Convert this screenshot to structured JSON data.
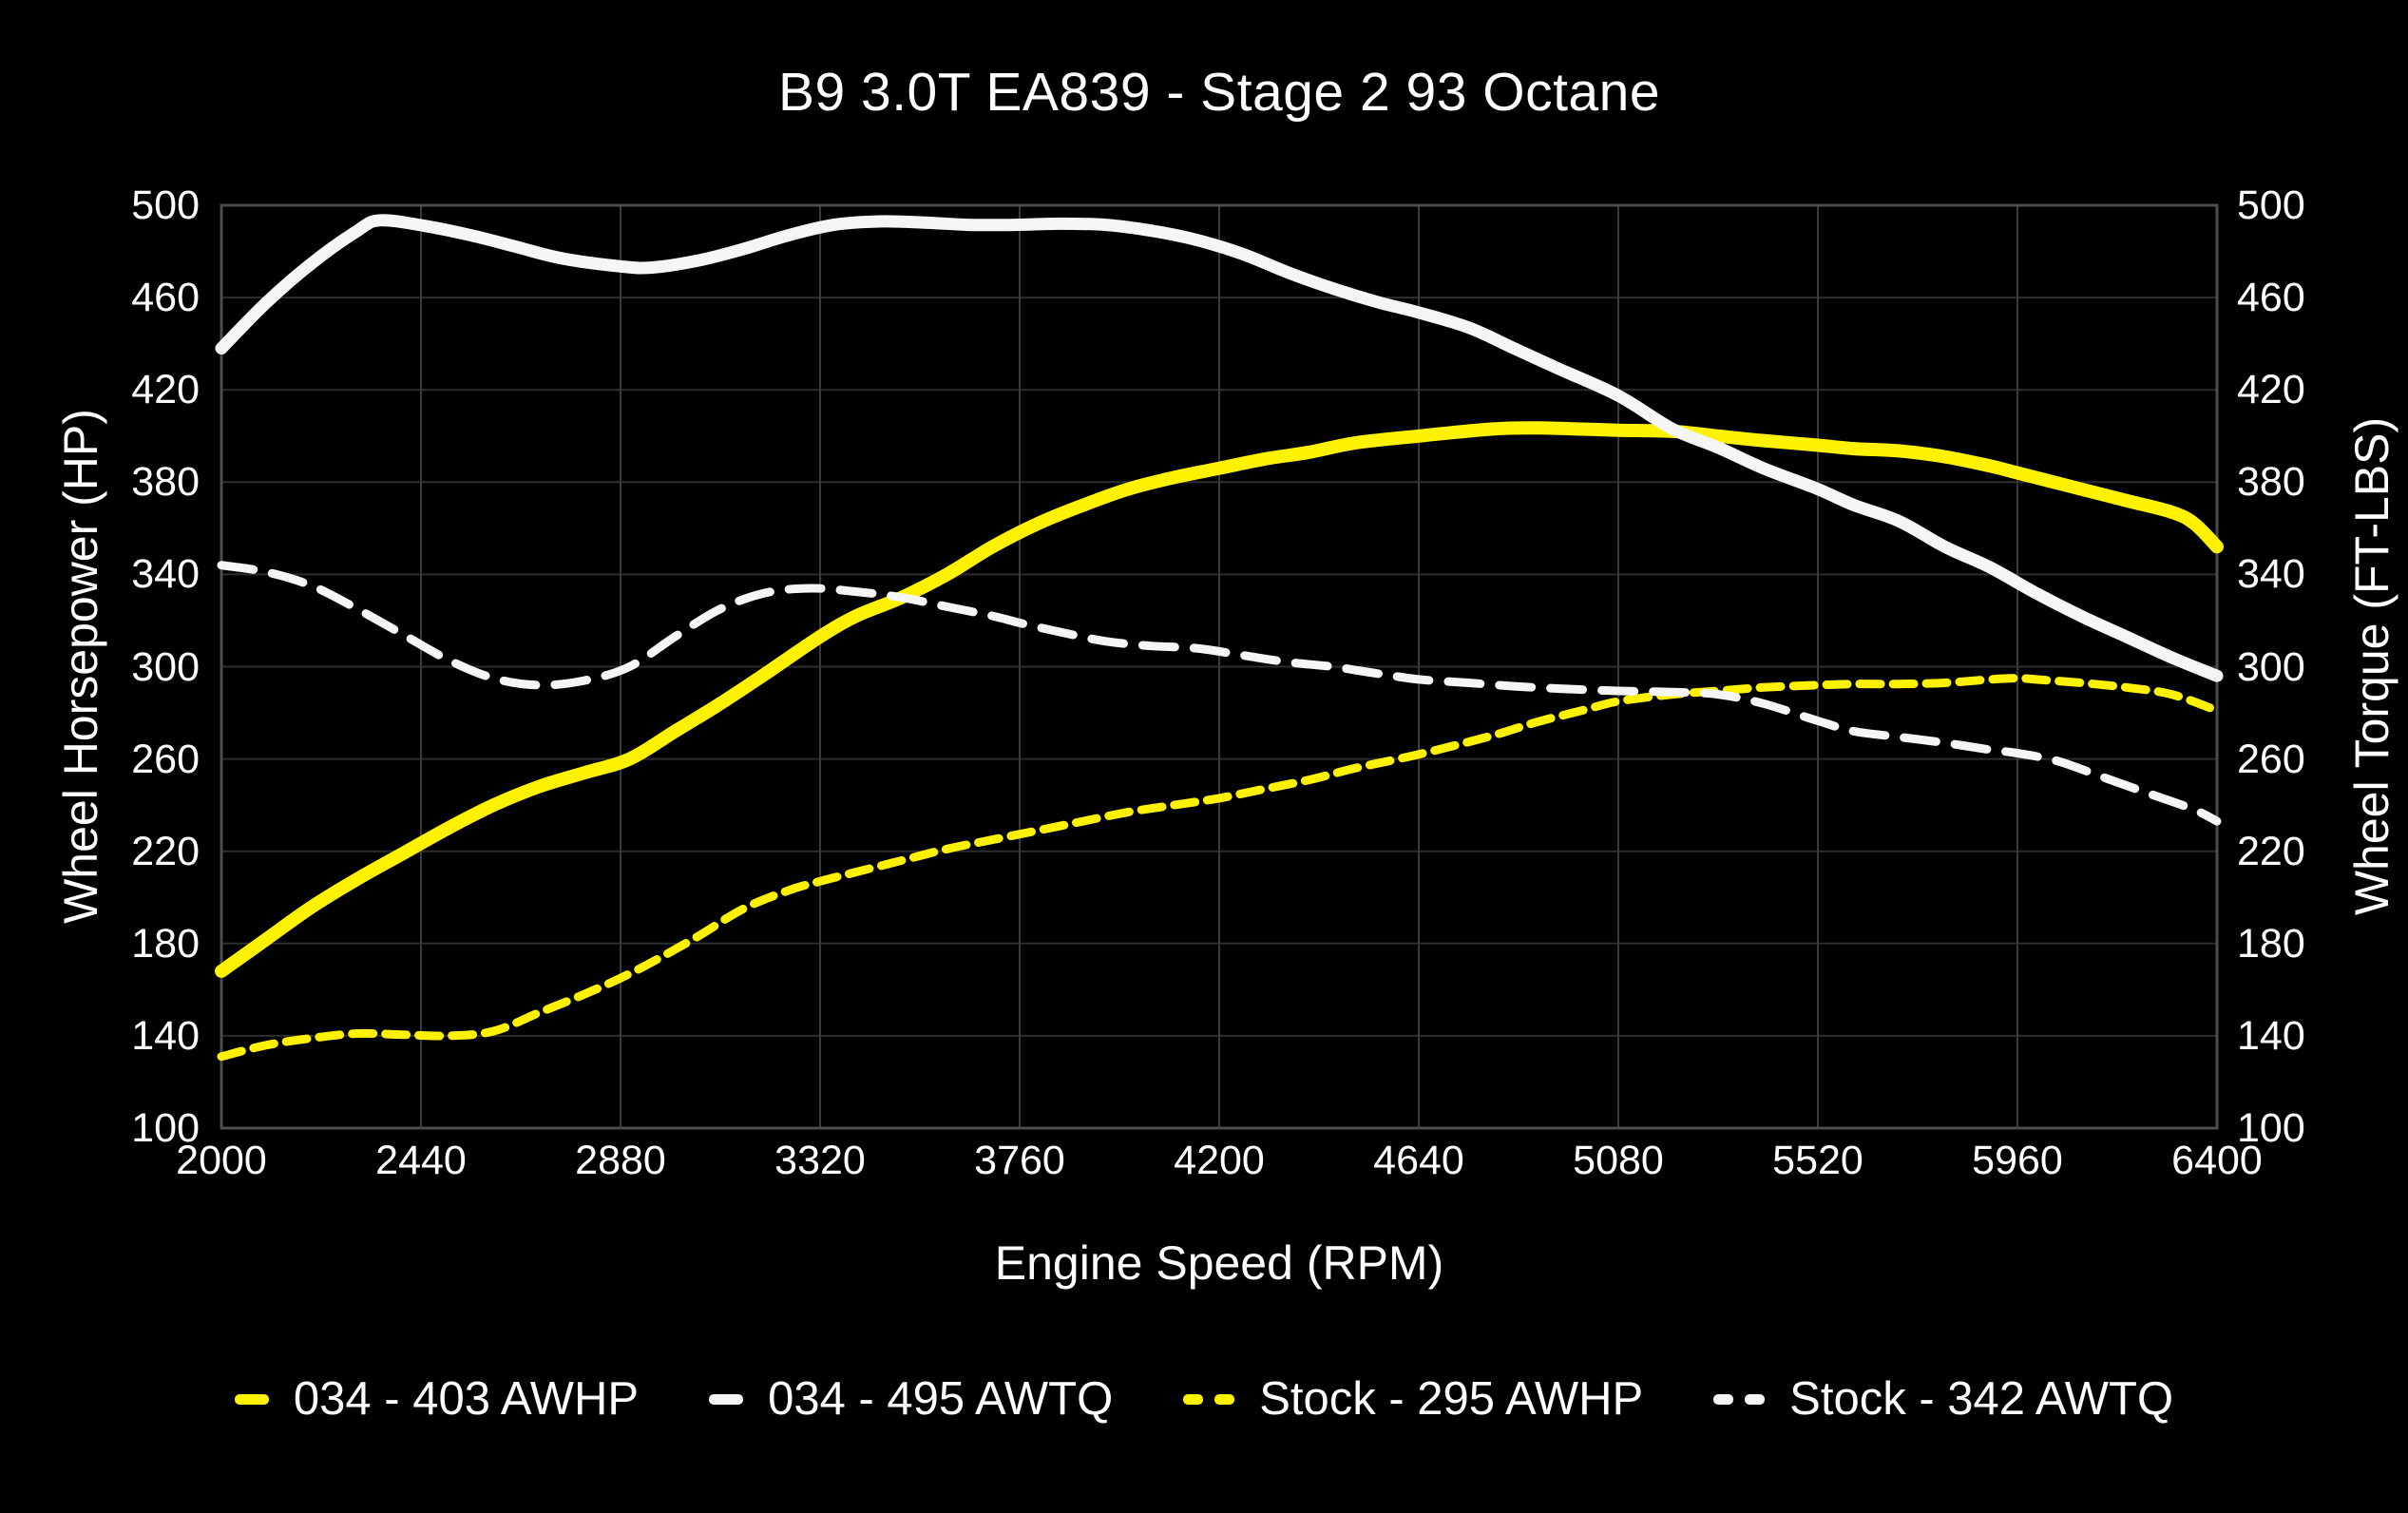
{
  "title": "B9 3.0T EA839 - Stage 2 93 Octane",
  "chart_data": {
    "type": "line",
    "title": "B9 3.0T EA839 - Stage 2 93 Octane",
    "xlabel": "Engine Speed (RPM)",
    "ylabel_left": "Wheel Horsepower (HP)",
    "ylabel_right": "Wheel Torque (FT-LBS)",
    "xlim": [
      2000,
      6400
    ],
    "ylim": [
      100,
      500
    ],
    "x_ticks": [
      2000,
      2440,
      2880,
      3320,
      3760,
      4200,
      4640,
      5080,
      5520,
      5960,
      6400
    ],
    "y_ticks": [
      100,
      140,
      180,
      220,
      260,
      300,
      340,
      380,
      420,
      460,
      500
    ],
    "grid": true,
    "legend_position": "bottom",
    "colors": {
      "background": "#000000",
      "text": "#ffffff",
      "grid": "#2e2e2e",
      "grid_vertical": "#3a3a3a",
      "frame": "#4d4d4d",
      "yellow": "#fff200",
      "white": "#f5f5f5"
    },
    "series": [
      {
        "name": "034 - 403 AWHP",
        "color": "#fff200",
        "style": "solid",
        "stroke_width": 14,
        "dash": null,
        "peak": 403,
        "x": [
          2000,
          2100,
          2200,
          2300,
          2400,
          2500,
          2600,
          2700,
          2800,
          2900,
          3000,
          3100,
          3200,
          3320,
          3400,
          3500,
          3600,
          3700,
          3800,
          3900,
          4000,
          4100,
          4200,
          4300,
          4400,
          4500,
          4640,
          4800,
          4900,
          5000,
          5080,
          5200,
          5300,
          5400,
          5520,
          5600,
          5700,
          5800,
          5900,
          5960,
          6000,
          6100,
          6200,
          6300,
          6350,
          6400
        ],
        "y": [
          168,
          182,
          196,
          208,
          219,
          230,
          240,
          248,
          254,
          260,
          272,
          284,
          297,
          313,
          322,
          330,
          340,
          352,
          362,
          370,
          377,
          382,
          386,
          390,
          393,
          397,
          400,
          403,
          403.5,
          403,
          402.5,
          402,
          400,
          398,
          396,
          394.5,
          393.5,
          391,
          387,
          384,
          382,
          377,
          372,
          367,
          362,
          352
        ]
      },
      {
        "name": "034 - 495 AWTQ",
        "color": "#f5f5f5",
        "style": "solid",
        "stroke_width": 13,
        "dash": null,
        "peak": 495,
        "x": [
          2000,
          2100,
          2200,
          2300,
          2350,
          2450,
          2550,
          2650,
          2750,
          2880,
          2950,
          3050,
          3150,
          3250,
          3350,
          3450,
          3550,
          3650,
          3750,
          3850,
          3950,
          4050,
          4150,
          4250,
          4350,
          4450,
          4550,
          4640,
          4750,
          4850,
          4950,
          5080,
          5200,
          5300,
          5400,
          5520,
          5600,
          5700,
          5800,
          5900,
          6000,
          6100,
          6200,
          6300,
          6400
        ],
        "y": [
          438,
          458,
          475,
          489,
          493.5,
          491,
          487,
          482,
          477,
          473.5,
          473,
          476,
          481,
          487,
          491.5,
          493,
          492.5,
          491.5,
          491.5,
          492,
          491.5,
          489,
          485,
          479,
          471,
          464,
          458,
          453.5,
          447,
          438,
          429,
          417.5,
          403,
          395,
          386,
          377,
          370,
          363,
          352,
          343,
          332,
          322,
          313,
          304,
          296
        ]
      },
      {
        "name": "Stock - 295 AWHP",
        "color": "#fff200",
        "style": "dashed",
        "stroke_width": 9,
        "dash": "22 13",
        "peak": 295,
        "x": [
          2000,
          2100,
          2200,
          2300,
          2400,
          2500,
          2600,
          2700,
          2800,
          2880,
          2950,
          3050,
          3150,
          3250,
          3320,
          3400,
          3500,
          3600,
          3700,
          3800,
          3900,
          4000,
          4100,
          4200,
          4300,
          4400,
          4500,
          4640,
          4800,
          4900,
          5000,
          5080,
          5200,
          5300,
          5400,
          5520,
          5600,
          5700,
          5800,
          5900,
          5960,
          6000,
          6100,
          6200,
          6300,
          6400
        ],
        "y": [
          131,
          136,
          139,
          141,
          140.5,
          140,
          142,
          150,
          158,
          165,
          172,
          183,
          195,
          203,
          207,
          211,
          216,
          221,
          225,
          229,
          233,
          237,
          240,
          243,
          247,
          251,
          256,
          262,
          270,
          276,
          281,
          285,
          288,
          289.5,
          291,
          292,
          292.5,
          292.5,
          293,
          294.5,
          295,
          294.5,
          293,
          291,
          288,
          281
        ]
      },
      {
        "name": "Stock - 342 AWTQ",
        "color": "#f5f5f5",
        "style": "dashed",
        "stroke_width": 9,
        "dash": "34 20",
        "peak": 342,
        "x": [
          2000,
          2100,
          2200,
          2300,
          2400,
          2500,
          2600,
          2700,
          2800,
          2900,
          3000,
          3100,
          3200,
          3300,
          3400,
          3500,
          3600,
          3700,
          3760,
          3850,
          3950,
          4050,
          4150,
          4250,
          4350,
          4450,
          4550,
          4640,
          4750,
          4850,
          4950,
          5080,
          5200,
          5300,
          5400,
          5520,
          5600,
          5700,
          5800,
          5900,
          5960,
          6050,
          6150,
          6250,
          6350,
          6400
        ],
        "y": [
          344,
          341,
          335,
          325,
          314,
          303,
          295,
          292,
          294,
          300,
          313,
          325,
          332,
          334,
          332.5,
          330,
          326,
          322,
          319,
          315,
          311,
          309,
          308,
          305,
          302,
          300,
          297,
          294.5,
          293,
          291.5,
          290.5,
          289.5,
          289,
          288,
          284,
          276.5,
          272,
          269.5,
          267,
          264,
          262.5,
          259,
          252,
          245,
          238,
          233
        ]
      }
    ]
  }
}
